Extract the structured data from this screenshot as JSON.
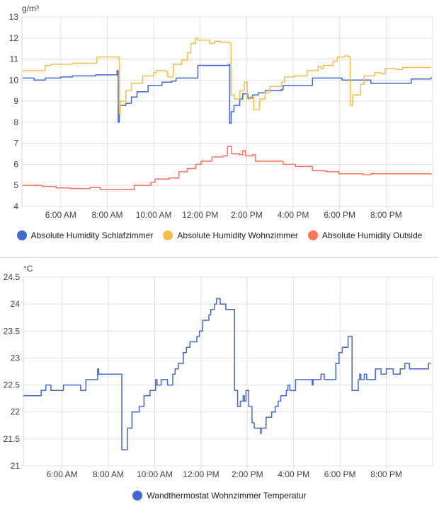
{
  "chart_data": [
    {
      "type": "line",
      "title": "",
      "ylabel": "g/m³",
      "xlabel": "",
      "ylim": [
        4,
        13
      ],
      "xlim_hours": [
        4.33,
        22.0
      ],
      "yticks": [
        "4",
        "5",
        "6",
        "7",
        "8",
        "9",
        "10",
        "11",
        "12",
        "13"
      ],
      "xticks": [
        {
          "hour": 6,
          "label": "6:00 AM"
        },
        {
          "hour": 8,
          "label": "8:00 AM"
        },
        {
          "hour": 10,
          "label": "10:00 AM"
        },
        {
          "hour": 12,
          "label": "12:00 PM"
        },
        {
          "hour": 14,
          "label": "2:00 PM"
        },
        {
          "hour": 16,
          "label": "4:00 PM"
        },
        {
          "hour": 18,
          "label": "6:00 PM"
        },
        {
          "hour": 20,
          "label": "8:00 PM"
        }
      ],
      "grid": true,
      "legend_placement": "bottom",
      "series": [
        {
          "name": "Absolute Humidity Schlafzimmer",
          "color": "#4269d0",
          "step": true,
          "points": [
            [
              4.36,
              10.1
            ],
            [
              4.85,
              10.0
            ],
            [
              5.33,
              10.1
            ],
            [
              6,
              10.15
            ],
            [
              6.5,
              10.2
            ],
            [
              7.5,
              10.25
            ],
            [
              8.42,
              10.45
            ],
            [
              8.47,
              8.0
            ],
            [
              8.52,
              8.8
            ],
            [
              8.8,
              8.9
            ],
            [
              9.04,
              9.2
            ],
            [
              9.28,
              9.45
            ],
            [
              9.76,
              9.75
            ],
            [
              10.36,
              9.9
            ],
            [
              10.78,
              9.95
            ],
            [
              10.96,
              10.1
            ],
            [
              11.9,
              10.7
            ],
            [
              13.23,
              10.75
            ],
            [
              13.27,
              7.95
            ],
            [
              13.33,
              8.5
            ],
            [
              13.45,
              8.8
            ],
            [
              13.7,
              9.1
            ],
            [
              13.83,
              9.35
            ],
            [
              14.05,
              9.15
            ],
            [
              14.25,
              9.3
            ],
            [
              14.5,
              9.4
            ],
            [
              14.8,
              9.5
            ],
            [
              15.5,
              9.55
            ],
            [
              15.57,
              9.75
            ],
            [
              16.83,
              10.1
            ],
            [
              18.1,
              10.0
            ],
            [
              19.34,
              9.85
            ],
            [
              21.08,
              10.05
            ],
            [
              21.93,
              10.15
            ]
          ]
        },
        {
          "name": "Absolute Humidity Wohnzimmer",
          "color": "#f4bd4a",
          "step": true,
          "points": [
            [
              4.36,
              10.45
            ],
            [
              5.15,
              10.45
            ],
            [
              5.33,
              10.7
            ],
            [
              5.57,
              10.75
            ],
            [
              6.5,
              10.8
            ],
            [
              7.55,
              11.1
            ],
            [
              8.47,
              11.1
            ],
            [
              8.52,
              8.4
            ],
            [
              8.56,
              9.0
            ],
            [
              8.74,
              9.0
            ],
            [
              8.8,
              9.5
            ],
            [
              9.04,
              9.85
            ],
            [
              9.52,
              10.2
            ],
            [
              10,
              10.35
            ],
            [
              10.1,
              10.45
            ],
            [
              10.54,
              10.4
            ],
            [
              10.6,
              10.15
            ],
            [
              10.84,
              10.75
            ],
            [
              11.2,
              10.95
            ],
            [
              11.44,
              11.3
            ],
            [
              11.6,
              11.75
            ],
            [
              11.8,
              12.0
            ],
            [
              11.9,
              11.9
            ],
            [
              12.4,
              11.75
            ],
            [
              12.63,
              11.85
            ],
            [
              12.87,
              11.8
            ],
            [
              13.3,
              11.7
            ],
            [
              13.33,
              9.3
            ],
            [
              13.47,
              9.1
            ],
            [
              13.7,
              9.5
            ],
            [
              13.9,
              9.9
            ],
            [
              14.02,
              9.1
            ],
            [
              14.13,
              9.2
            ],
            [
              14.3,
              8.6
            ],
            [
              14.55,
              9.1
            ],
            [
              14.73,
              9.1
            ],
            [
              14.79,
              9.4
            ],
            [
              15,
              9.7
            ],
            [
              15.5,
              9.9
            ],
            [
              15.63,
              10.15
            ],
            [
              16.05,
              10.2
            ],
            [
              16.6,
              10.45
            ],
            [
              17.07,
              10.65
            ],
            [
              17.2,
              10.55
            ],
            [
              17.3,
              10.7
            ],
            [
              17.72,
              10.9
            ],
            [
              17.9,
              11.1
            ],
            [
              18.2,
              11.15
            ],
            [
              18.4,
              11.1
            ],
            [
              18.46,
              8.8
            ],
            [
              18.56,
              9.3
            ],
            [
              18.77,
              9.3
            ],
            [
              18.9,
              9.8
            ],
            [
              19.05,
              10.2
            ],
            [
              19.5,
              10.35
            ],
            [
              19.8,
              10.3
            ],
            [
              19.96,
              10.55
            ],
            [
              20.45,
              10.5
            ],
            [
              20.7,
              10.6
            ],
            [
              21.93,
              10.6
            ]
          ]
        },
        {
          "name": "Absolute Humidity Outside",
          "color": "#ff725c",
          "step": true,
          "points": [
            [
              4.36,
              5.0
            ],
            [
              5.2,
              4.95
            ],
            [
              5.8,
              4.88
            ],
            [
              6.4,
              4.85
            ],
            [
              7.25,
              4.9
            ],
            [
              7.7,
              4.8
            ],
            [
              8.56,
              4.8
            ],
            [
              9.16,
              5.0
            ],
            [
              9.88,
              5.15
            ],
            [
              10.06,
              5.3
            ],
            [
              10.66,
              5.35
            ],
            [
              11.08,
              5.65
            ],
            [
              11.44,
              5.8
            ],
            [
              11.8,
              6.0
            ],
            [
              12.04,
              6.15
            ],
            [
              12.5,
              6.35
            ],
            [
              12.99,
              6.4
            ],
            [
              13.17,
              6.85
            ],
            [
              13.35,
              6.5
            ],
            [
              13.7,
              6.45
            ],
            [
              13.83,
              6.65
            ],
            [
              13.95,
              6.4
            ],
            [
              14.25,
              6.45
            ],
            [
              14.37,
              6.15
            ],
            [
              15.57,
              6.0
            ],
            [
              16.1,
              5.9
            ],
            [
              16.83,
              5.7
            ],
            [
              17.42,
              5.65
            ],
            [
              17.96,
              5.55
            ],
            [
              19.0,
              5.5
            ],
            [
              19.35,
              5.55
            ],
            [
              21.93,
              5.5
            ]
          ]
        }
      ]
    },
    {
      "type": "line",
      "title": "",
      "ylabel": "°C",
      "xlabel": "",
      "ylim": [
        21,
        24.5
      ],
      "xlim_hours": [
        4.33,
        22.0
      ],
      "yticks": [
        "21",
        "21.5",
        "22",
        "22.5",
        "23",
        "23.5",
        "24",
        "24.5"
      ],
      "xticks": [
        {
          "hour": 6,
          "label": "6:00 AM"
        },
        {
          "hour": 8,
          "label": "8:00 AM"
        },
        {
          "hour": 10,
          "label": "10:00 AM"
        },
        {
          "hour": 12,
          "label": "12:00 PM"
        },
        {
          "hour": 14,
          "label": "2:00 PM"
        },
        {
          "hour": 16,
          "label": "4:00 PM"
        },
        {
          "hour": 18,
          "label": "6:00 PM"
        },
        {
          "hour": 20,
          "label": "8:00 PM"
        }
      ],
      "grid": true,
      "legend_placement": "bottom",
      "series": [
        {
          "name": "Wandthermostat Wohnzimmer Temperatur",
          "color": "#4269d0",
          "step": true,
          "points": [
            [
              4.32,
              22.3
            ],
            [
              5.1,
              22.4
            ],
            [
              5.3,
              22.5
            ],
            [
              5.52,
              22.4
            ],
            [
              6.06,
              22.5
            ],
            [
              6.8,
              22.4
            ],
            [
              7.03,
              22.6
            ],
            [
              7.54,
              22.8
            ],
            [
              7.58,
              22.7
            ],
            [
              8.53,
              22.7
            ],
            [
              8.58,
              21.3
            ],
            [
              8.78,
              21.3
            ],
            [
              8.82,
              21.7
            ],
            [
              9.02,
              22.0
            ],
            [
              9.33,
              22.1
            ],
            [
              9.54,
              22.3
            ],
            [
              9.8,
              22.4
            ],
            [
              10.04,
              22.6
            ],
            [
              10.1,
              22.5
            ],
            [
              10.28,
              22.6
            ],
            [
              10.55,
              22.5
            ],
            [
              10.78,
              22.7
            ],
            [
              10.88,
              22.8
            ],
            [
              11.02,
              22.9
            ],
            [
              11.24,
              23.1
            ],
            [
              11.37,
              23.2
            ],
            [
              11.52,
              23.3
            ],
            [
              11.82,
              23.4
            ],
            [
              11.93,
              23.5
            ],
            [
              12.07,
              23.7
            ],
            [
              12.34,
              23.8
            ],
            [
              12.42,
              23.9
            ],
            [
              12.58,
              24.0
            ],
            [
              12.67,
              24.1
            ],
            [
              12.83,
              24.0
            ],
            [
              13.07,
              23.9
            ],
            [
              13.31,
              23.9
            ],
            [
              13.45,
              22.4
            ],
            [
              13.58,
              22.1
            ],
            [
              13.7,
              22.2
            ],
            [
              13.82,
              22.3
            ],
            [
              13.87,
              22.2
            ],
            [
              13.94,
              22.4
            ],
            [
              14.06,
              22.1
            ],
            [
              14.2,
              21.8
            ],
            [
              14.3,
              21.7
            ],
            [
              14.57,
              21.6
            ],
            [
              14.6,
              21.7
            ],
            [
              14.81,
              21.9
            ],
            [
              15.05,
              22.0
            ],
            [
              15.2,
              22.1
            ],
            [
              15.33,
              22.2
            ],
            [
              15.44,
              22.3
            ],
            [
              15.68,
              22.4
            ],
            [
              15.75,
              22.5
            ],
            [
              15.84,
              22.4
            ],
            [
              16.08,
              22.6
            ],
            [
              16.8,
              22.5
            ],
            [
              16.84,
              22.6
            ],
            [
              17.18,
              22.7
            ],
            [
              17.32,
              22.6
            ],
            [
              17.82,
              22.9
            ],
            [
              17.96,
              23.1
            ],
            [
              18.1,
              23.2
            ],
            [
              18.35,
              23.4
            ],
            [
              18.52,
              22.4
            ],
            [
              18.79,
              22.6
            ],
            [
              18.85,
              22.7
            ],
            [
              18.9,
              22.6
            ],
            [
              19.05,
              22.7
            ],
            [
              19.15,
              22.6
            ],
            [
              19.53,
              22.8
            ],
            [
              19.77,
              22.7
            ],
            [
              20.0,
              22.8
            ],
            [
              20.3,
              22.7
            ],
            [
              20.6,
              22.8
            ],
            [
              20.8,
              22.9
            ],
            [
              21.0,
              22.8
            ],
            [
              21.82,
              22.9
            ],
            [
              21.93,
              22.9
            ]
          ]
        }
      ]
    }
  ]
}
